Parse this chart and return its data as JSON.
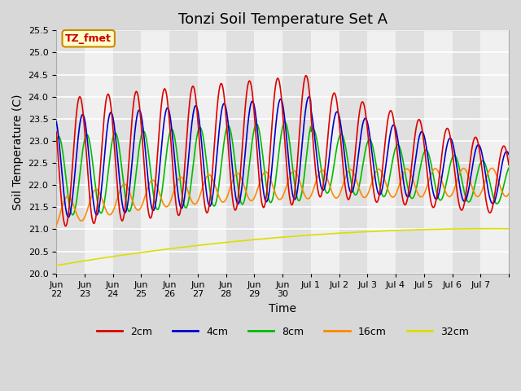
{
  "title": "Tonzi Soil Temperature Set A",
  "xlabel": "Time",
  "ylabel": "Soil Temperature (C)",
  "annotation_text": "TZ_fmet",
  "annotation_bg": "#ffffcc",
  "annotation_border": "#cc8800",
  "annotation_text_color": "#cc0000",
  "ylim": [
    20.0,
    25.5
  ],
  "yticks": [
    20.0,
    20.5,
    21.0,
    21.5,
    22.0,
    22.5,
    23.0,
    23.5,
    24.0,
    24.5,
    25.0,
    25.5
  ],
  "xtick_positions": [
    0,
    1,
    2,
    3,
    4,
    5,
    6,
    7,
    8,
    9,
    10,
    11,
    12,
    13,
    14,
    15,
    16
  ],
  "xtick_labels": [
    "Jun\n22",
    "Jun\n23",
    "Jun\n24",
    "Jun\n25",
    "Jun\n26",
    "Jun\n27",
    "Jun\n28",
    "Jun\n29",
    "Jun\n30",
    "Jul 1",
    "Jul 2",
    "Jul 3",
    "Jul 4",
    "Jul 5",
    "Jul 6",
    "Jul 7",
    ""
  ],
  "legend_labels": [
    "2cm",
    "4cm",
    "8cm",
    "16cm",
    "32cm"
  ],
  "line_colors": [
    "#dd0000",
    "#0000cc",
    "#00bb00",
    "#ff8800",
    "#dddd00"
  ],
  "plot_bg_color": "#f0f0f0",
  "stripe_color": "#e0e0e0",
  "grid_color": "#ffffff",
  "title_fontsize": 13,
  "label_fontsize": 10,
  "tick_fontsize": 8
}
